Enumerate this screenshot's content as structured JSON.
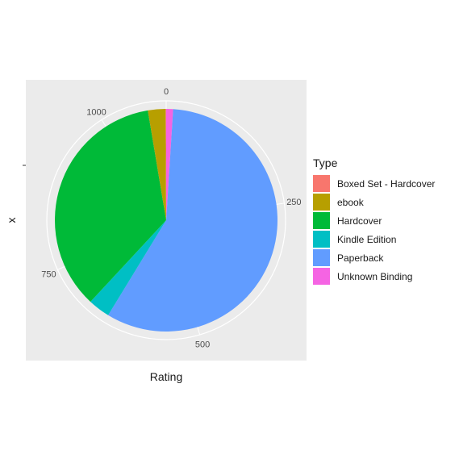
{
  "chart_data": {
    "type": "pie",
    "title": "",
    "xlabel": "Rating",
    "ylabel": "x",
    "theta_ticks": [
      "0",
      "250",
      "500",
      "750",
      "1000"
    ],
    "theta_range": [
      0,
      1100
    ],
    "legend": {
      "title": "Type",
      "placement": "right"
    },
    "slices": [
      {
        "name": "Boxed Set - Hardcover",
        "value": 1,
        "color": "#F8766D"
      },
      {
        "name": "ebook",
        "value": 28,
        "color": "#B79F00"
      },
      {
        "name": "Hardcover",
        "value": 390,
        "color": "#00BA38"
      },
      {
        "name": "Kindle Edition",
        "value": 35,
        "color": "#00BFC4"
      },
      {
        "name": "Paperback",
        "value": 635,
        "color": "#619CFF"
      },
      {
        "name": "Unknown Binding",
        "value": 11,
        "color": "#F564E3"
      }
    ]
  }
}
